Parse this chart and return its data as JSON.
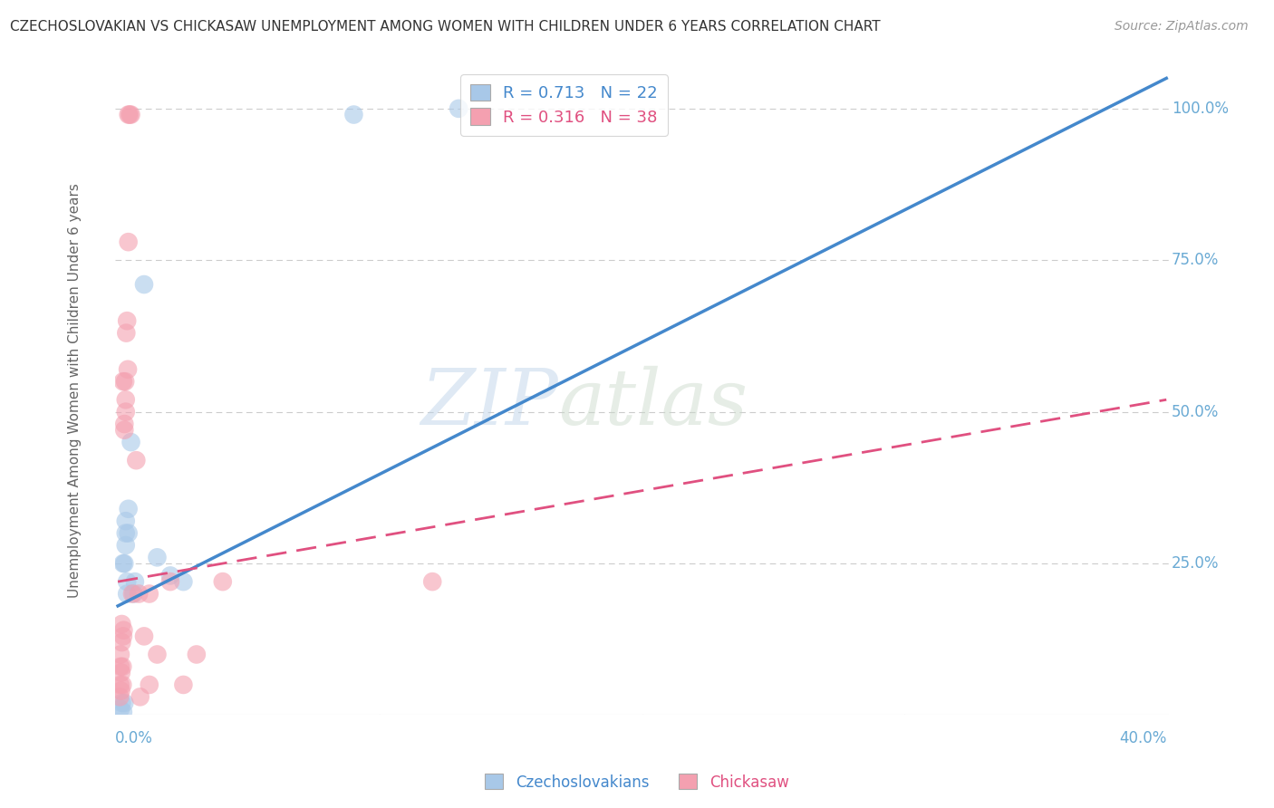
{
  "title": "CZECHOSLOVAKIAN VS CHICKASAW UNEMPLOYMENT AMONG WOMEN WITH CHILDREN UNDER 6 YEARS CORRELATION CHART",
  "source": "Source: ZipAtlas.com",
  "ylabel": "Unemployment Among Women with Children Under 6 years",
  "watermark_zip": "ZIP",
  "watermark_atlas": "atlas",
  "legend": {
    "blue_R": "0.713",
    "blue_N": "22",
    "pink_R": "0.316",
    "pink_N": "38"
  },
  "blue_color": "#a8c8e8",
  "pink_color": "#f4a0b0",
  "blue_line_color": "#4488cc",
  "pink_line_color": "#e05080",
  "grid_color": "#cccccc",
  "title_color": "#333333",
  "axis_label_color": "#6aaad4",
  "background_color": "#ffffff",
  "blue_scatter": [
    [
      0.001,
      0.01
    ],
    [
      0.0015,
      0.02
    ],
    [
      0.002,
      0.005
    ],
    [
      0.002,
      0.25
    ],
    [
      0.0025,
      0.02
    ],
    [
      0.0025,
      0.25
    ],
    [
      0.003,
      0.28
    ],
    [
      0.003,
      0.3
    ],
    [
      0.003,
      0.32
    ],
    [
      0.0035,
      0.2
    ],
    [
      0.0035,
      0.22
    ],
    [
      0.004,
      0.3
    ],
    [
      0.004,
      0.34
    ],
    [
      0.005,
      0.45
    ],
    [
      0.006,
      0.2
    ],
    [
      0.0065,
      0.22
    ],
    [
      0.01,
      0.71
    ],
    [
      0.015,
      0.26
    ],
    [
      0.02,
      0.23
    ],
    [
      0.025,
      0.22
    ],
    [
      0.09,
      0.99
    ],
    [
      0.13,
      1.0
    ]
  ],
  "pink_scatter": [
    [
      0.0008,
      0.03
    ],
    [
      0.0009,
      0.05
    ],
    [
      0.001,
      0.08
    ],
    [
      0.001,
      0.1
    ],
    [
      0.0012,
      0.04
    ],
    [
      0.0013,
      0.07
    ],
    [
      0.0015,
      0.12
    ],
    [
      0.0015,
      0.15
    ],
    [
      0.0018,
      0.05
    ],
    [
      0.0018,
      0.08
    ],
    [
      0.002,
      0.13
    ],
    [
      0.002,
      0.55
    ],
    [
      0.0022,
      0.14
    ],
    [
      0.0025,
      0.47
    ],
    [
      0.0025,
      0.48
    ],
    [
      0.0028,
      0.55
    ],
    [
      0.003,
      0.5
    ],
    [
      0.003,
      0.52
    ],
    [
      0.0032,
      0.63
    ],
    [
      0.0035,
      0.65
    ],
    [
      0.0038,
      0.57
    ],
    [
      0.004,
      0.78
    ],
    [
      0.004,
      0.99
    ],
    [
      0.0045,
      0.99
    ],
    [
      0.005,
      0.99
    ],
    [
      0.0055,
      0.2
    ],
    [
      0.007,
      0.42
    ],
    [
      0.008,
      0.2
    ],
    [
      0.0085,
      0.03
    ],
    [
      0.01,
      0.13
    ],
    [
      0.012,
      0.2
    ],
    [
      0.012,
      0.05
    ],
    [
      0.015,
      0.1
    ],
    [
      0.02,
      0.22
    ],
    [
      0.025,
      0.05
    ],
    [
      0.03,
      0.1
    ],
    [
      0.04,
      0.22
    ],
    [
      0.12,
      0.22
    ]
  ],
  "xlim": [
    0.0,
    0.4
  ],
  "ylim": [
    0.0,
    1.05
  ],
  "blue_line": {
    "x0": 0.0,
    "y0": 0.18,
    "x1": 0.4,
    "y1": 1.05
  },
  "pink_line": {
    "x0": 0.0,
    "y0": 0.22,
    "x1": 0.4,
    "y1": 0.52
  }
}
